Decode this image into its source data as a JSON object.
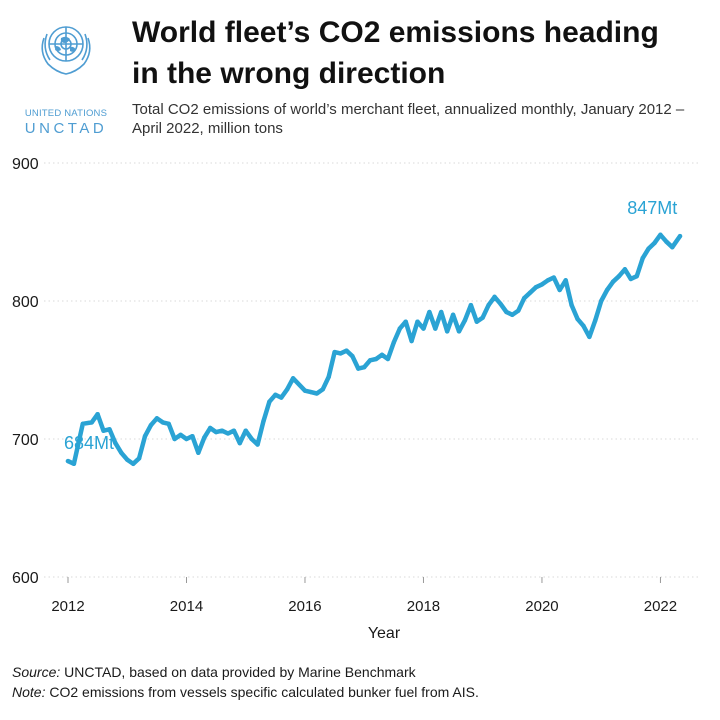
{
  "logo": {
    "org_line": "UNITED NATIONS",
    "acronym": "UNCTAD"
  },
  "title": "World fleet’s CO2 emissions heading in the wrong direction",
  "subtitle": "Total CO2 emissions of world’s merchant fleet, annualized monthly, January 2012 – April 2022, million tons",
  "footer": {
    "source_label": "Source:",
    "source_text": " UNCTAD, based on data provided by Marine Benchmark",
    "note_label": "Note:",
    "note_text": " CO2 emissions from vessels specific calculated bunker fuel from AIS."
  },
  "colors": {
    "line": "#2aa3d4",
    "annotation": "#2aa3d4",
    "grid": "#d9d9d9",
    "text": "#1a1a1a"
  },
  "chart_data": {
    "type": "line",
    "title": "World fleet’s CO2 emissions heading in the wrong direction",
    "xlabel": "Year",
    "ylabel": "",
    "xlim": [
      2012.0,
      2022.33
    ],
    "ylim": [
      600,
      900
    ],
    "x_ticks": [
      2012,
      2014,
      2016,
      2018,
      2020,
      2022
    ],
    "y_ticks": [
      600,
      700,
      800,
      900
    ],
    "grid": "horizontal dotted",
    "annotations": [
      {
        "text": "684Mt",
        "x": 2012.0,
        "y": 684
      },
      {
        "text": "847Mt",
        "x": 2022.25,
        "y": 847
      }
    ],
    "series": [
      {
        "x": [
          2012.0,
          2012.1,
          2012.25,
          2012.4,
          2012.5,
          2012.6,
          2012.7,
          2012.8,
          2012.9,
          2013.0,
          2013.1,
          2013.2,
          2013.3,
          2013.4,
          2013.5,
          2013.6,
          2013.7,
          2013.8,
          2013.9,
          2014.0,
          2014.1,
          2014.2,
          2014.3,
          2014.4,
          2014.5,
          2014.6,
          2014.7,
          2014.8,
          2014.9,
          2015.0,
          2015.1,
          2015.2,
          2015.3,
          2015.4,
          2015.5,
          2015.6,
          2015.7,
          2015.8,
          2016.0,
          2016.1,
          2016.2,
          2016.3,
          2016.4,
          2016.5,
          2016.6,
          2016.7,
          2016.8,
          2016.9,
          2017.0,
          2017.1,
          2017.2,
          2017.3,
          2017.4,
          2017.5,
          2017.6,
          2017.7,
          2017.8,
          2017.9,
          2018.0,
          2018.1,
          2018.2,
          2018.3,
          2018.4,
          2018.5,
          2018.6,
          2018.7,
          2018.8,
          2018.9,
          2019.0,
          2019.1,
          2019.2,
          2019.3,
          2019.4,
          2019.5,
          2019.6,
          2019.7,
          2019.8,
          2019.9,
          2020.0,
          2020.1,
          2020.2,
          2020.3,
          2020.4,
          2020.5,
          2020.6,
          2020.7,
          2020.8,
          2020.9,
          2021.0,
          2021.1,
          2021.2,
          2021.3,
          2021.4,
          2021.5,
          2021.6,
          2021.7,
          2021.8,
          2021.9,
          2022.0,
          2022.1,
          2022.2,
          2022.33
        ],
        "values": [
          684,
          682,
          711,
          712,
          718,
          706,
          707,
          697,
          690,
          685,
          682,
          686,
          702,
          710,
          715,
          712,
          711,
          700,
          703,
          700,
          702,
          690,
          701,
          708,
          705,
          706,
          704,
          706,
          697,
          706,
          700,
          696,
          713,
          727,
          732,
          730,
          736,
          744,
          735,
          734,
          733,
          736,
          745,
          763,
          762,
          764,
          760,
          751,
          752,
          757,
          758,
          761,
          758,
          770,
          780,
          785,
          771,
          785,
          780,
          792,
          780,
          792,
          778,
          790,
          778,
          786,
          797,
          785,
          788,
          797,
          803,
          798,
          792,
          790,
          793,
          802,
          806,
          810,
          812,
          815,
          817,
          808,
          815,
          797,
          787,
          782,
          774,
          786,
          800,
          808,
          814,
          818,
          823,
          816,
          818,
          831,
          838,
          842,
          848,
          843,
          839,
          847
        ]
      }
    ]
  }
}
